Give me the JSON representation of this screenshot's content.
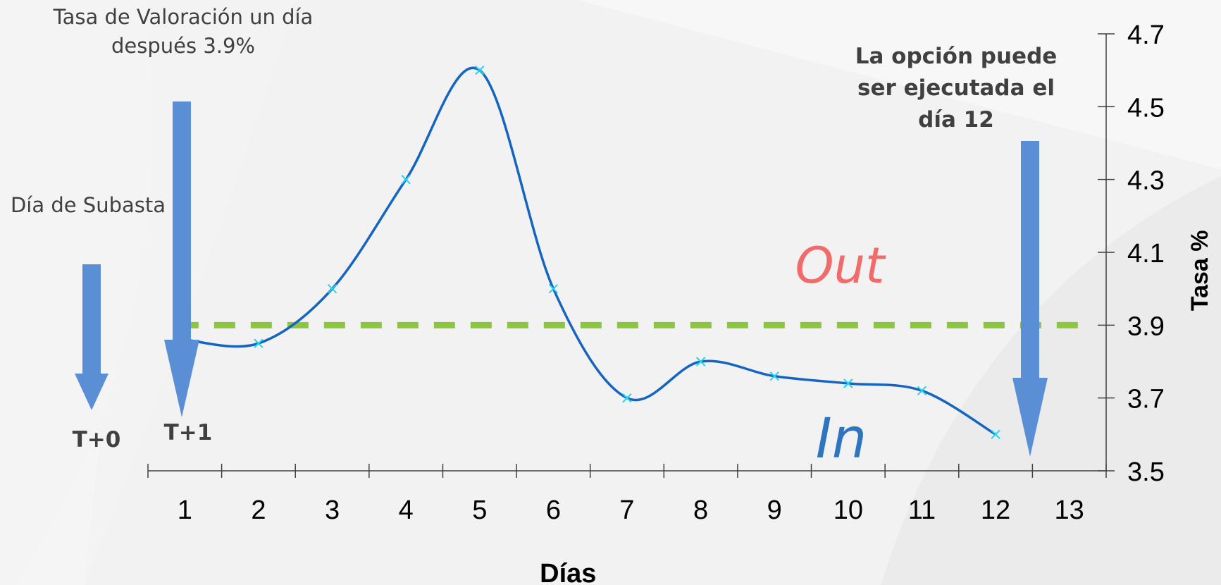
{
  "chart_data": {
    "type": "line",
    "xlabel": "Días",
    "ylabel": "Tasa %",
    "x_ticks": [
      "1",
      "2",
      "3",
      "4",
      "5",
      "6",
      "7",
      "8",
      "9",
      "10",
      "11",
      "12",
      "13"
    ],
    "y_ticks": [
      "3.5",
      "3.7",
      "3.9",
      "4.1",
      "4.3",
      "4.5",
      "4.7"
    ],
    "xlim": [
      0.5,
      13.5
    ],
    "ylim": [
      3.5,
      4.7
    ],
    "grid": false,
    "series": [
      {
        "x": [
          1,
          2,
          3,
          4,
          5,
          6,
          7,
          8,
          9,
          10,
          11,
          12
        ],
        "values": [
          3.86,
          3.85,
          4.0,
          4.3,
          4.6,
          4.0,
          3.7,
          3.8,
          3.76,
          3.74,
          3.72,
          3.6
        ],
        "color": "#1565c0",
        "marker": "x",
        "marker_color": "#1fd5f0"
      }
    ],
    "reference_line": {
      "y": 3.9,
      "style": "dashed",
      "color": "#8cc63f"
    }
  },
  "annotations": {
    "valuation_rate": "Tasa de Valoración un día después 3.9%",
    "auction_day": "Día de Subasta",
    "t0": "T+0",
    "t1": "T+1",
    "exercise": "La opción puede ser ejecutada el día 12",
    "out_label": "Out",
    "in_label": "In"
  },
  "colors": {
    "arrow": "#5a8fd6",
    "background": "#f2f2f2",
    "axis": "#404040"
  }
}
